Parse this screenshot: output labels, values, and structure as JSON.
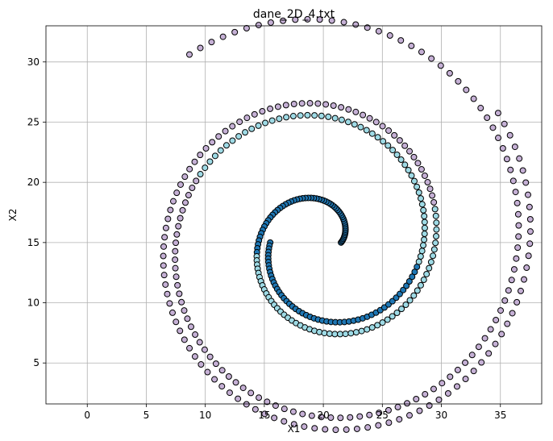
{
  "chart_data": {
    "type": "scatter",
    "title": "dane_2D_4.txt",
    "xlabel": "X1",
    "ylabel": "X2",
    "xlim": [
      -3.5,
      38.5
    ],
    "ylim": [
      1.6,
      33.0
    ],
    "xticks": [
      0,
      5,
      10,
      15,
      20,
      25,
      30,
      35
    ],
    "yticks": [
      5,
      10,
      15,
      20,
      25,
      30
    ],
    "grid": true,
    "colors": {
      "dark_blue": "#1f77b4",
      "light_cyan": "#9edae5",
      "lavender": "#c5b0d5"
    },
    "spirals": [
      {
        "cx": 20.0,
        "cy": 15.0,
        "start_deg": 0,
        "r0": 1.5,
        "r_per_turn": 8.0,
        "turns": 2.1,
        "points": 230,
        "color_key_sequence": [
          "dark_blue",
          "light_cyan",
          "lavender"
        ],
        "section_bounds": [
          0.0,
          0.25,
          0.5
        ]
      },
      {
        "cx": 20.0,
        "cy": 15.0,
        "start_deg": 180,
        "r0": 4.5,
        "r_per_turn": 8.0,
        "turns": 1.85,
        "points": 210,
        "color_key_sequence": [
          "dark_blue",
          "light_cyan",
          "lavender"
        ],
        "section_bounds": [
          0.0,
          0.25,
          0.5
        ]
      }
    ]
  }
}
